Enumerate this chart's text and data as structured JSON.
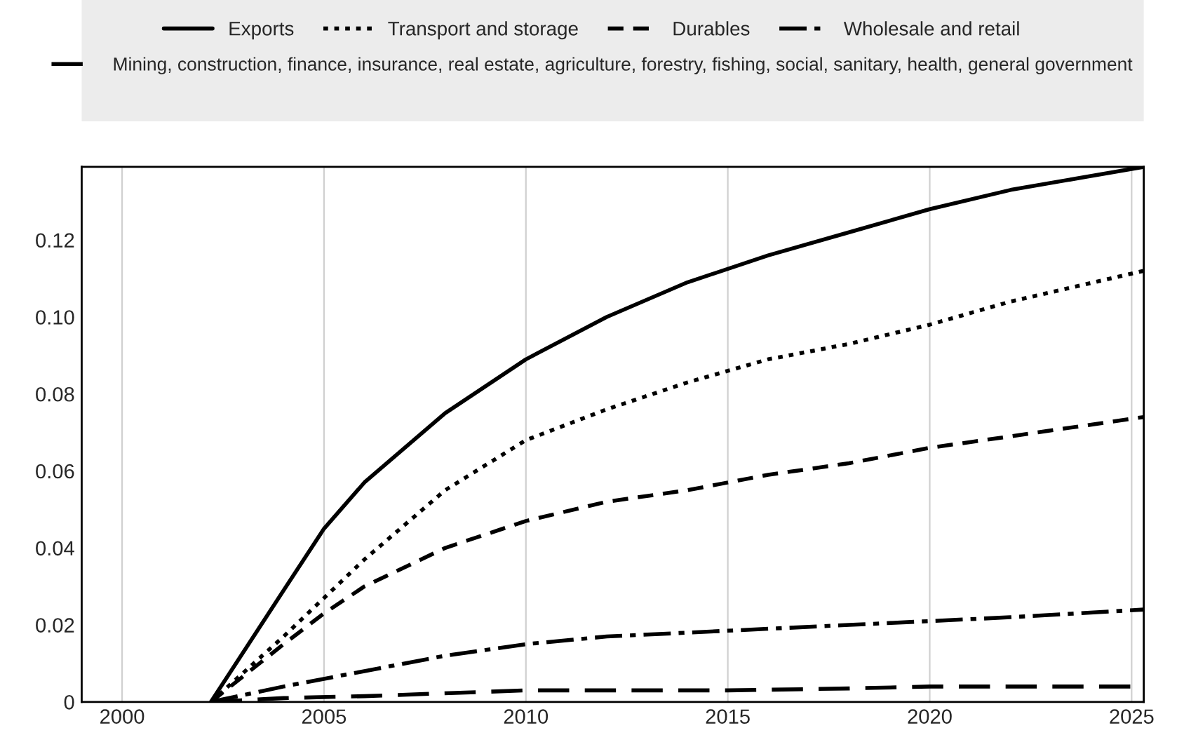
{
  "chart_data": {
    "type": "line",
    "xlim": [
      1999,
      2025.3
    ],
    "xticks": [
      2000,
      2005,
      2010,
      2015,
      2020,
      2025
    ],
    "ylim": [
      0,
      0.139
    ],
    "yticks": [
      0,
      0.02,
      0.04,
      0.06,
      0.08,
      {
        "value": 0.1,
        "label": "0.10"
      },
      0.12
    ],
    "grid": "x",
    "legend": "top",
    "series": [
      {
        "name": "Exports",
        "color": "#000000",
        "line_style": "solid",
        "x": [
          2002.2,
          2004,
          2005,
          2006,
          2008,
          2010,
          2012,
          2014,
          2016,
          2018,
          2020,
          2022,
          2025.3
        ],
        "values": [
          0,
          0.029,
          0.045,
          0.057,
          0.075,
          0.089,
          0.1,
          0.109,
          0.116,
          0.122,
          0.128,
          0.133,
          0.139
        ]
      },
      {
        "name": "Transport and storage",
        "color": "#000000",
        "line_style": "dotted",
        "x": [
          2002.2,
          2004,
          2005,
          2006,
          2008,
          2010,
          2012,
          2014,
          2016,
          2018,
          2020,
          2022,
          2025.3
        ],
        "values": [
          0,
          0.017,
          0.027,
          0.037,
          0.055,
          0.068,
          0.076,
          0.083,
          0.089,
          0.093,
          0.098,
          0.104,
          0.112
        ]
      },
      {
        "name": "Durables",
        "color": "#000000",
        "line_style": "dashed",
        "x": [
          2002.2,
          2004,
          2005,
          2006,
          2008,
          2010,
          2012,
          2014,
          2016,
          2018,
          2020,
          2022,
          2025.3
        ],
        "values": [
          0,
          0.015,
          0.023,
          0.03,
          0.04,
          0.047,
          0.052,
          0.055,
          0.059,
          0.062,
          0.066,
          0.069,
          0.074
        ]
      },
      {
        "name": "Wholesale and retail",
        "color": "#000000",
        "line_style": "dashdot",
        "x": [
          2002.2,
          2004,
          2006,
          2008,
          2010,
          2012,
          2014,
          2016,
          2018,
          2020,
          2022,
          2025.3
        ],
        "values": [
          0,
          0.004,
          0.008,
          0.012,
          0.015,
          0.017,
          0.018,
          0.019,
          0.02,
          0.021,
          0.022,
          0.024
        ]
      },
      {
        "name": "Mining, construction, finance, insurance, real estate, agriculture, forestry, fishing, social, sanitary, health, general government",
        "color": "#000000",
        "line_style": "longdash",
        "x": [
          2002.2,
          2004,
          2006,
          2010,
          2015,
          2018,
          2020,
          2025.3
        ],
        "values": [
          0,
          0.001,
          0.0015,
          0.003,
          0.003,
          0.0035,
          0.004,
          0.004
        ]
      }
    ]
  }
}
